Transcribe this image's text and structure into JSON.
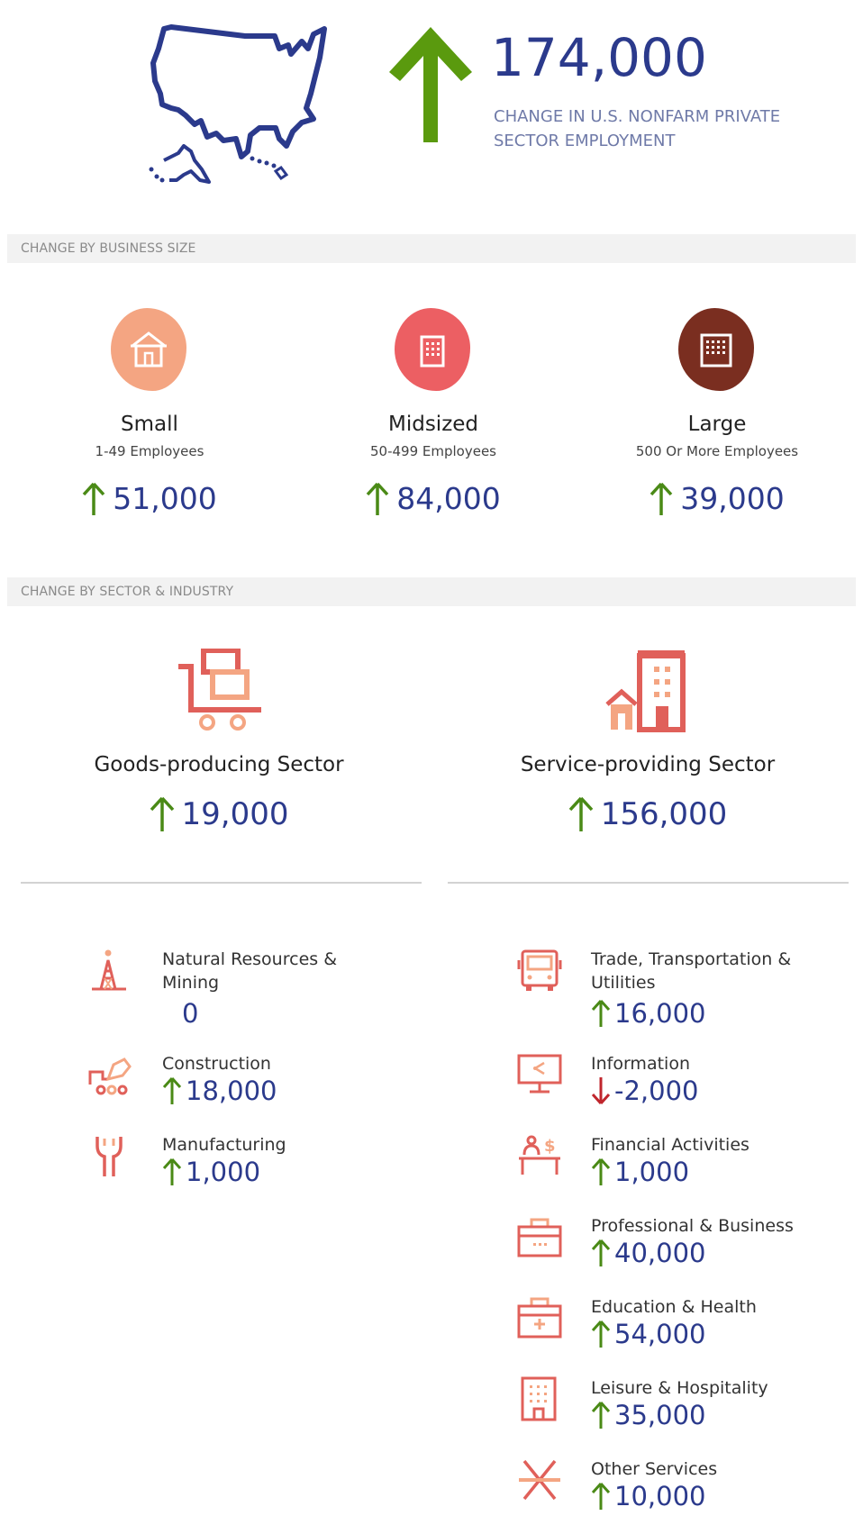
{
  "hero": {
    "value": "174,000",
    "direction": "up",
    "caption_line1": "CHANGE IN U.S. NONFARM PRIVATE",
    "caption_line2": "SECTOR EMPLOYMENT",
    "icon": "us-map-icon"
  },
  "business_size": {
    "header": "CHANGE BY BUSINESS SIZE",
    "items": [
      {
        "name": "Small",
        "sub": "1-49 Employees",
        "value": "51,000",
        "direction": "up",
        "icon": "house-icon",
        "color": "#f4a582"
      },
      {
        "name": "Midsized",
        "sub": "50-499 Employees",
        "value": "84,000",
        "direction": "up",
        "icon": "building-icon",
        "color": "#ec5f63"
      },
      {
        "name": "Large",
        "sub": "500 Or More Employees",
        "value": "39,000",
        "direction": "up",
        "icon": "tower-icon",
        "color": "#7a2e20"
      }
    ]
  },
  "sector": {
    "header": "CHANGE BY SECTOR & INDUSTRY",
    "goods": {
      "name": "Goods-producing Sector",
      "value": "19,000",
      "direction": "up",
      "icon": "cart-icon"
    },
    "services": {
      "name": "Service-providing Sector",
      "value": "156,000",
      "direction": "up",
      "icon": "city-icon"
    }
  },
  "industries": {
    "goods": [
      {
        "label_line1": "Natural Resources &",
        "label_line2": "Mining",
        "value": "0",
        "direction": "none",
        "icon": "oil-derrick-icon"
      },
      {
        "label_line1": "Construction",
        "label_line2": "",
        "value": "18,000",
        "direction": "up",
        "icon": "excavator-icon"
      },
      {
        "label_line1": "Manufacturing",
        "label_line2": "",
        "value": "1,000",
        "direction": "up",
        "icon": "wrench-icon"
      }
    ],
    "services": [
      {
        "label_line1": "Trade, Transportation &",
        "label_line2": "Utilities",
        "value": "16,000",
        "direction": "up",
        "icon": "bus-icon"
      },
      {
        "label_line1": "Information",
        "label_line2": "",
        "value": "-2,000",
        "direction": "down",
        "icon": "monitor-icon"
      },
      {
        "label_line1": "Financial Activities",
        "label_line2": "",
        "value": "1,000",
        "direction": "up",
        "icon": "cashier-icon"
      },
      {
        "label_line1": "Professional & Business",
        "label_line2": "",
        "value": "40,000",
        "direction": "up",
        "icon": "briefcase-icon"
      },
      {
        "label_line1": "Education & Health",
        "label_line2": "",
        "value": "54,000",
        "direction": "up",
        "icon": "medical-kit-icon"
      },
      {
        "label_line1": "Leisure & Hospitality",
        "label_line2": "",
        "value": "35,000",
        "direction": "up",
        "icon": "hotel-icon"
      },
      {
        "label_line1": "Other Services",
        "label_line2": "",
        "value": "10,000",
        "direction": "up",
        "icon": "tools-cross-icon"
      }
    ]
  },
  "colors": {
    "navy": "#2b3a8c",
    "green_up": "#4a8a16",
    "red_down": "#c0262d",
    "icon_red": "#e0605a",
    "icon_peach": "#f4a582"
  }
}
